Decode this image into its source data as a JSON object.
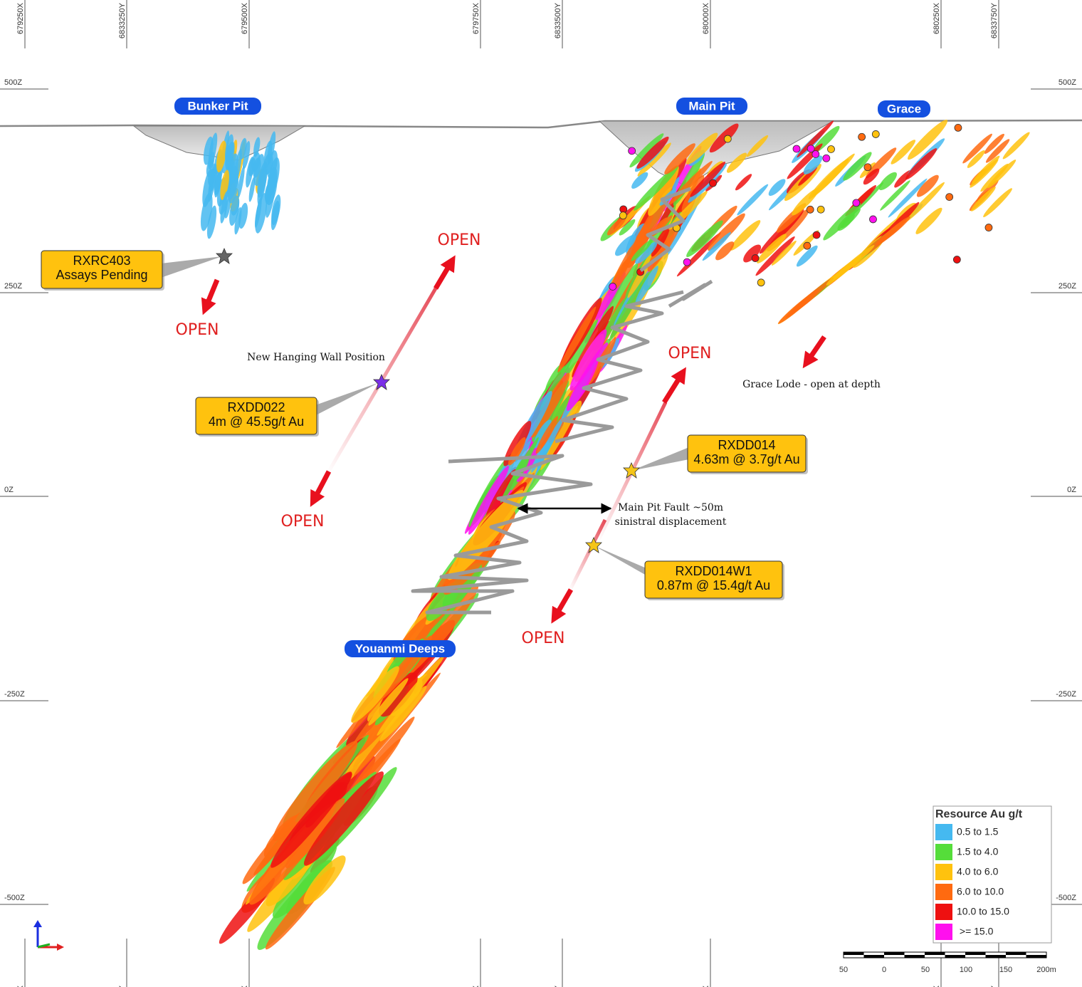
{
  "grid": {
    "x_labels": [
      "679250X",
      "6833250Y",
      "679500X",
      "679750X",
      "6833500Y",
      "680000X",
      "680250X",
      "6833750Y"
    ],
    "z_labels": [
      "500Z",
      "250Z",
      "0Z",
      "-250Z",
      "-500Z"
    ]
  },
  "places": [
    "Bunker Pit",
    "Main Pit",
    "Grace",
    "Youanmi Deeps"
  ],
  "open_label": "OPEN",
  "callouts": [
    {
      "lines": [
        "RXRC403",
        "Assays Pending"
      ]
    },
    {
      "lines": [
        "RXDD022",
        "4m @ 45.5g/t Au"
      ]
    },
    {
      "lines": [
        "RXDD014",
        "4.63m @ 3.7g/t Au"
      ]
    },
    {
      "lines": [
        "RXDD014W1",
        "0.87m @ 15.4g/t Au"
      ]
    }
  ],
  "annotations": [
    "New Hanging Wall Position",
    "Grace Lode - open at depth",
    "Main Pit Fault ~50m",
    "sinistral displacement"
  ],
  "legend": {
    "title": "Resource Au g/t",
    "items": [
      {
        "label": "0.5 to 1.5",
        "color": "#45b9f0"
      },
      {
        "label": "1.5 to 4.0",
        "color": "#55dd3a"
      },
      {
        "label": "4.0 to 6.0",
        "color": "#ffc20e"
      },
      {
        "label": "6.0 to 10.0",
        "color": "#ff6a10"
      },
      {
        "label": "10.0 to 15.0",
        "color": "#ee1010"
      },
      {
        "label": " >= 15.0",
        "color": "#ff10ee"
      }
    ]
  },
  "scale_bar": {
    "labels": [
      "50",
      "0",
      "50",
      "100",
      "150",
      "200m"
    ]
  }
}
